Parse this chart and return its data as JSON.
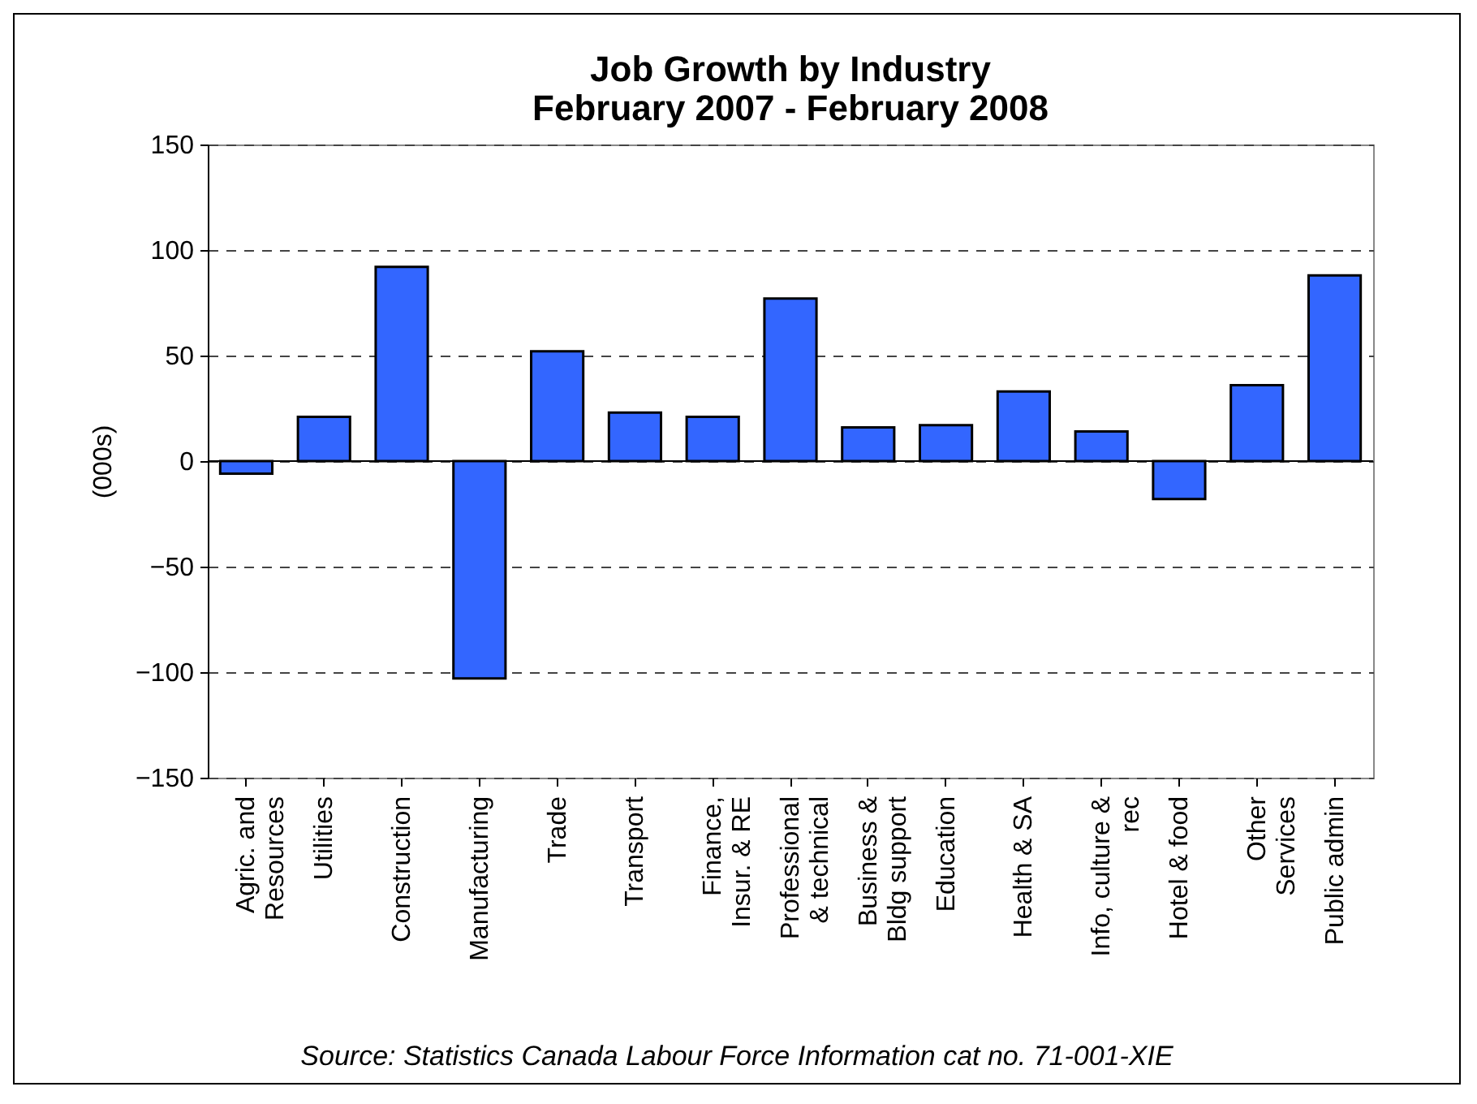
{
  "chart_data": {
    "type": "bar",
    "title": [
      "Job Growth by Industry",
      "February 2007 - February 2008"
    ],
    "ylabel": "(000s)",
    "categories": [
      "Agric. and\nResources",
      "Utilities",
      "Construction",
      "Manufacturing",
      "Trade",
      "Transport",
      "Finance,\nInsur. & RE",
      "Professional\n& technical",
      "Business &\nBldg support",
      "Education",
      "Health & SA",
      "Info, culture &\nrec",
      "Hotel & food",
      "Other\nServices",
      "Public admin"
    ],
    "values": [
      -6,
      21,
      92,
      -103,
      52,
      23,
      21,
      77,
      16,
      17,
      33,
      14,
      -18,
      36,
      88
    ],
    "color": "#3366ff",
    "ylim": [
      -150,
      150
    ],
    "yticks": [
      -150,
      -100,
      -50,
      0,
      50,
      100,
      150
    ],
    "grid": "y",
    "annotations": [
      "Source: Statistics Canada Labour Force Information cat no. 71-001-XIE"
    ]
  }
}
